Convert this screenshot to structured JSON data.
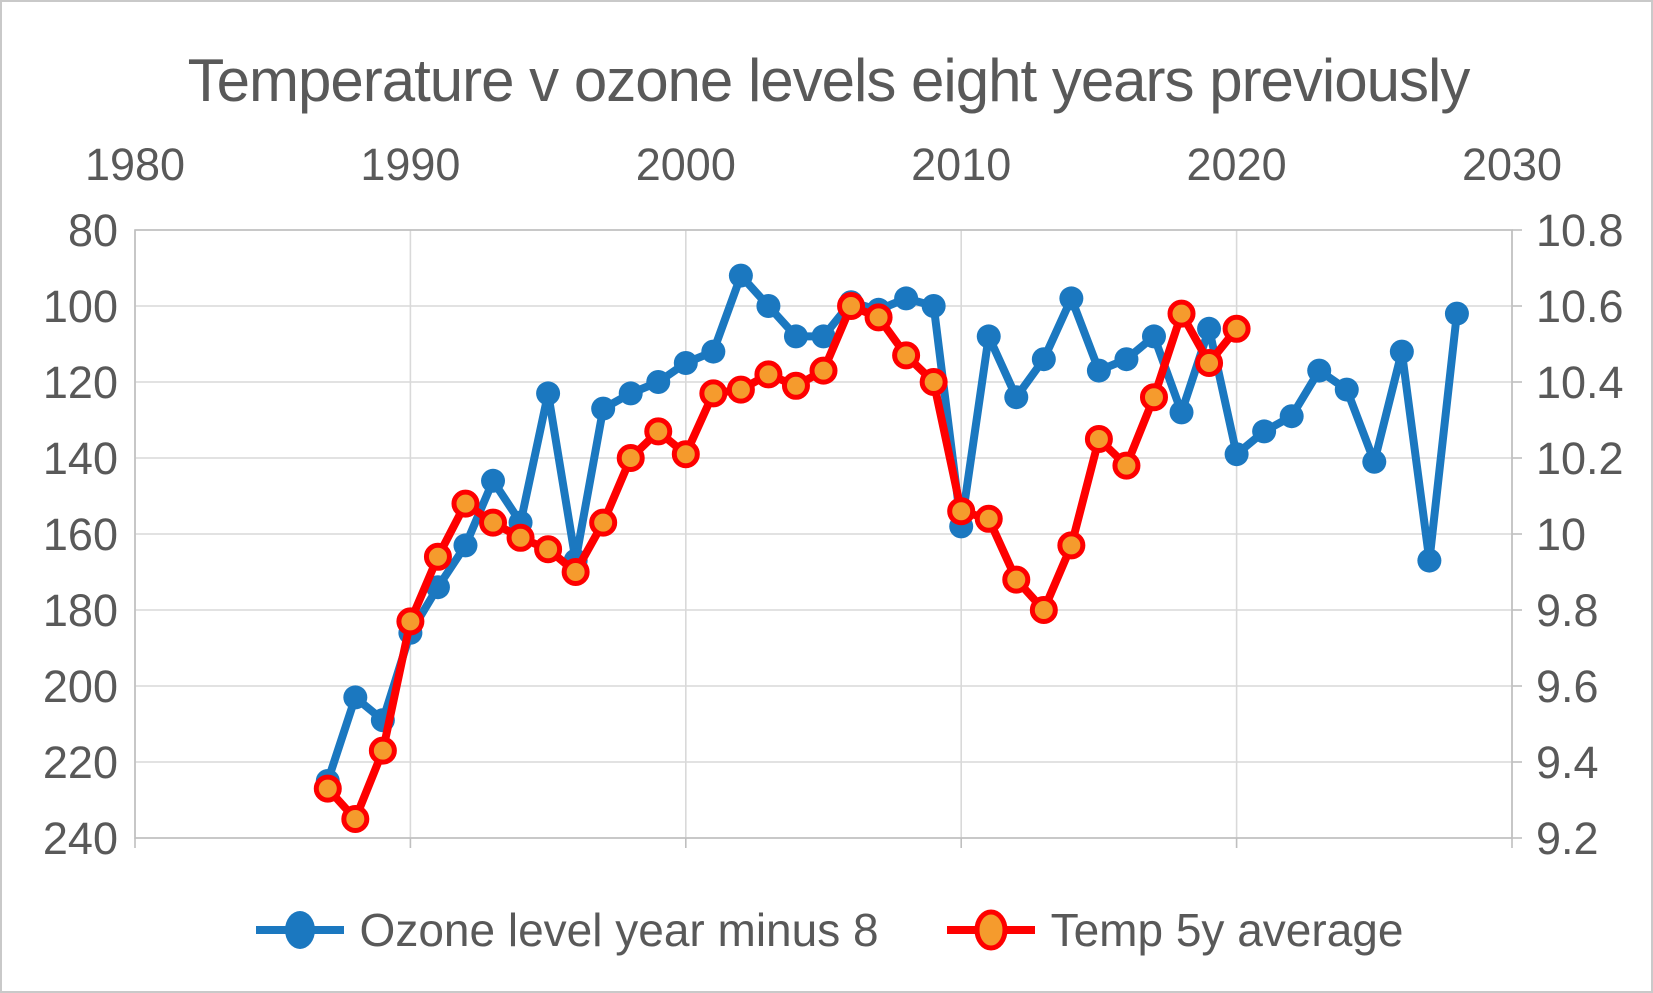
{
  "title": "Temperature v ozone levels eight years previously",
  "colors": {
    "ozone_blue": "#1B78C0",
    "temp_red": "#FE0000",
    "temp_marker_fill": "#F59B2D",
    "gridline": "#D9D9D9",
    "axis_line": "#BFBFBF",
    "label_gray": "#595959",
    "background": "#FFFFFF"
  },
  "legend": {
    "items": [
      {
        "label": "Ozone level year minus 8",
        "swatch": "blue-line-circle-marker"
      },
      {
        "label": "Temp 5y average",
        "swatch": "red-line-orange-circle-marker"
      }
    ]
  },
  "chart_data": {
    "type": "line",
    "title": "Temperature v ozone levels eight years previously",
    "x_axis": {
      "position": "top",
      "range": [
        1980,
        2030
      ],
      "tick_labels": [
        "1980",
        "1990",
        "2000",
        "2010",
        "2020",
        "2030"
      ],
      "tick_values": [
        1980,
        1990,
        2000,
        2010,
        2020,
        2030
      ]
    },
    "y_axis_left": {
      "range": [
        80,
        240
      ],
      "inverted": true,
      "tick_labels": [
        "80",
        "100",
        "120",
        "140",
        "160",
        "180",
        "200",
        "220",
        "240"
      ],
      "tick_values": [
        80,
        100,
        120,
        140,
        160,
        180,
        200,
        220,
        240
      ],
      "applies_to_series": "Ozone level year minus 8"
    },
    "y_axis_right": {
      "range": [
        9.2,
        10.8
      ],
      "inverted": false,
      "tick_labels": [
        "10.8",
        "10.6",
        "10.4",
        "10.2",
        "10",
        "9.8",
        "9.6",
        "9.4",
        "9.2"
      ],
      "tick_values": [
        10.8,
        10.6,
        10.4,
        10.2,
        10.0,
        9.8,
        9.6,
        9.4,
        9.2
      ],
      "applies_to_series": "Temp 5y average"
    },
    "grid": true,
    "legend_position": "bottom",
    "series": [
      {
        "name": "Ozone level year minus 8",
        "axis": "left",
        "style": "line-with-circle-markers",
        "x": [
          1987,
          1988,
          1989,
          1990,
          1991,
          1992,
          1993,
          1994,
          1995,
          1996,
          1997,
          1998,
          1999,
          2000,
          2001,
          2002,
          2003,
          2004,
          2005,
          2006,
          2007,
          2008,
          2009,
          2010,
          2011,
          2012,
          2013,
          2014,
          2015,
          2016,
          2017,
          2018,
          2019,
          2020,
          2021,
          2022,
          2023,
          2024,
          2025,
          2026,
          2027,
          2028
        ],
        "values": [
          225,
          203,
          209,
          186,
          174,
          163,
          146,
          157,
          123,
          167,
          127,
          123,
          120,
          115,
          112,
          92,
          100,
          108,
          108,
          99,
          101,
          98,
          100,
          158,
          108,
          124,
          114,
          98,
          117,
          114,
          108,
          128,
          106,
          139,
          133,
          129,
          117,
          122,
          141,
          112,
          167,
          102
        ]
      },
      {
        "name": "Temp 5y average",
        "axis": "right",
        "style": "line-with-circle-markers",
        "x": [
          1987,
          1988,
          1989,
          1990,
          1991,
          1992,
          1993,
          1994,
          1995,
          1996,
          1997,
          1998,
          1999,
          2000,
          2001,
          2002,
          2003,
          2004,
          2005,
          2006,
          2007,
          2008,
          2009,
          2010,
          2011,
          2012,
          2013,
          2014,
          2015,
          2016,
          2017,
          2018,
          2019,
          2020
        ],
        "values": [
          9.33,
          9.25,
          9.43,
          9.77,
          9.94,
          10.08,
          10.03,
          9.99,
          9.96,
          9.9,
          10.03,
          10.2,
          10.27,
          10.21,
          10.37,
          10.38,
          10.42,
          10.39,
          10.43,
          10.6,
          10.57,
          10.47,
          10.4,
          10.06,
          10.04,
          9.88,
          9.8,
          9.97,
          10.25,
          10.18,
          10.36,
          10.58,
          10.45,
          10.54
        ]
      }
    ]
  }
}
